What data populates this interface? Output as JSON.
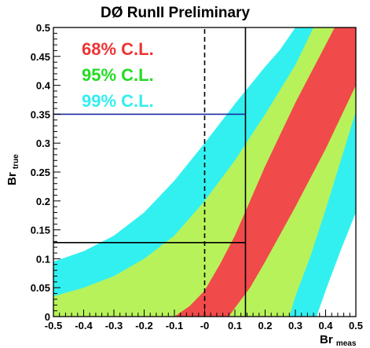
{
  "chart_data": {
    "type": "area",
    "title": "DØ RunII Preliminary",
    "xlabel": {
      "main": "Br",
      "sub": "meas"
    },
    "ylabel": {
      "main": "Br",
      "sub": "true"
    },
    "xlim": [
      -0.5,
      0.5
    ],
    "ylim": [
      0,
      0.5
    ],
    "x_ticks": [
      "-0.5",
      "-0.4",
      "-0.3",
      "-0.2",
      "-0.1",
      "-0",
      "0.1",
      "0.2",
      "0.3",
      "0.4",
      "0.5"
    ],
    "y_ticks": [
      "0",
      "0.05",
      "0.1",
      "0.15",
      "0.2",
      "0.25",
      "0.3",
      "0.35",
      "0.4",
      "0.45",
      "0.5"
    ],
    "legend": [
      {
        "label": "68% C.L.",
        "color": "#ee3333"
      },
      {
        "label": "95% C.L.",
        "color": "#22dd22"
      },
      {
        "label": "99% C.L.",
        "color": "#33eeee"
      }
    ],
    "bands": [
      {
        "name": "99% C.L.",
        "color": "#33f0f0",
        "left_edge": [
          [
            -0.5,
            0.095
          ],
          [
            -0.4,
            0.113
          ],
          [
            -0.3,
            0.14
          ],
          [
            -0.2,
            0.18
          ],
          [
            -0.1,
            0.235
          ],
          [
            0.0,
            0.3
          ],
          [
            0.1,
            0.368
          ],
          [
            0.2,
            0.432
          ],
          [
            0.25,
            0.462
          ],
          [
            0.3,
            0.5
          ]
        ],
        "right_edge": [
          [
            0.37,
            0.0
          ],
          [
            0.4,
            0.045
          ],
          [
            0.45,
            0.115
          ],
          [
            0.5,
            0.18
          ]
        ]
      },
      {
        "name": "95% C.L.",
        "color": "#b8f25a",
        "left_edge": [
          [
            -0.5,
            0.035
          ],
          [
            -0.4,
            0.05
          ],
          [
            -0.3,
            0.07
          ],
          [
            -0.2,
            0.1
          ],
          [
            -0.1,
            0.14
          ],
          [
            0.0,
            0.2
          ],
          [
            0.1,
            0.27
          ],
          [
            0.2,
            0.35
          ],
          [
            0.3,
            0.435
          ],
          [
            0.36,
            0.5
          ]
        ],
        "right_edge": [
          [
            0.28,
            0.0
          ],
          [
            0.3,
            0.035
          ],
          [
            0.35,
            0.105
          ],
          [
            0.4,
            0.185
          ],
          [
            0.45,
            0.27
          ],
          [
            0.5,
            0.355
          ]
        ]
      },
      {
        "name": "68% C.L.",
        "color": "#f04a4a",
        "left_edge": [
          [
            -0.1,
            0.0
          ],
          [
            -0.05,
            0.018
          ],
          [
            0.0,
            0.045
          ],
          [
            0.05,
            0.09
          ],
          [
            0.1,
            0.14
          ],
          [
            0.15,
            0.2
          ],
          [
            0.2,
            0.26
          ],
          [
            0.3,
            0.37
          ],
          [
            0.4,
            0.47
          ],
          [
            0.43,
            0.5
          ]
        ],
        "right_edge": [
          [
            0.08,
            0.0
          ],
          [
            0.1,
            0.015
          ],
          [
            0.15,
            0.05
          ],
          [
            0.2,
            0.095
          ],
          [
            0.3,
            0.19
          ],
          [
            0.4,
            0.29
          ],
          [
            0.5,
            0.4
          ]
        ]
      }
    ],
    "lines": [
      {
        "name": "zero",
        "style": "dashed",
        "color": "#000000",
        "points": [
          [
            0.0,
            0.0
          ],
          [
            0.0,
            0.5
          ]
        ]
      },
      {
        "name": "measured",
        "style": "solid",
        "color": "#000000",
        "points": [
          [
            0.135,
            0.0
          ],
          [
            0.135,
            0.5
          ]
        ]
      },
      {
        "name": "limit-99",
        "style": "solid",
        "color": "#1a2aa0",
        "points": [
          [
            -0.5,
            0.35
          ],
          [
            0.135,
            0.35
          ]
        ]
      },
      {
        "name": "lower-limit",
        "style": "solid",
        "color": "#000000",
        "points": [
          [
            -0.5,
            0.128
          ],
          [
            0.135,
            0.128
          ]
        ]
      }
    ]
  }
}
